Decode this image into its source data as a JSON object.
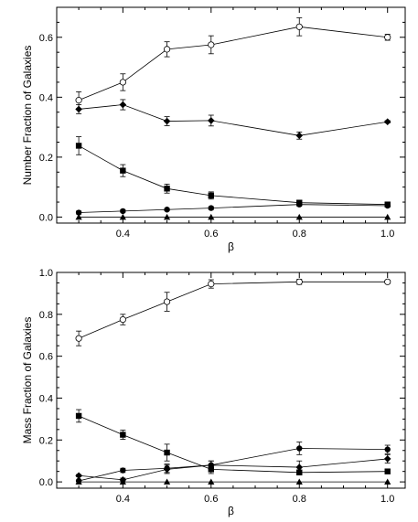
{
  "chart_data": [
    {
      "type": "line",
      "title": "",
      "xlabel": "β",
      "ylabel": "Number Fraction of Galaxies",
      "xlim": [
        0.25,
        1.04
      ],
      "ylim": [
        -0.02,
        0.7
      ],
      "xticks": [
        0.4,
        0.6,
        0.8,
        1.0
      ],
      "xtick_labels": [
        "0.4",
        "0.6",
        "0.8",
        "1.0"
      ],
      "yticks": [
        0.0,
        0.2,
        0.4,
        0.6
      ],
      "ytick_labels": [
        "0.0",
        "0.2",
        "0.4",
        "0.6"
      ],
      "x": [
        0.3,
        0.4,
        0.5,
        0.6,
        0.8,
        1.0
      ],
      "grid": false,
      "series": [
        {
          "marker": "open-circle",
          "values": [
            0.39,
            0.45,
            0.56,
            0.575,
            0.635,
            0.6
          ],
          "errors": [
            0.028,
            0.028,
            0.025,
            0.03,
            0.03,
            0.01
          ]
        },
        {
          "marker": "filled-diamond",
          "values": [
            0.36,
            0.375,
            0.32,
            0.322,
            0.272,
            0.318
          ],
          "errors": [
            0.015,
            0.017,
            0.015,
            0.018,
            0.012,
            0.004
          ]
        },
        {
          "marker": "filled-square",
          "values": [
            0.238,
            0.155,
            0.095,
            0.072,
            0.048,
            0.042
          ],
          "errors": [
            0.03,
            0.02,
            0.015,
            0.012,
            0.008,
            0.005
          ]
        },
        {
          "marker": "filled-circle",
          "values": [
            0.015,
            0.02,
            0.025,
            0.03,
            0.042,
            0.038
          ],
          "errors": [
            0.005,
            0.004,
            0.004,
            0.005,
            0.006,
            0.003
          ]
        },
        {
          "marker": "filled-triangle",
          "values": [
            0.0,
            0.0,
            0.0,
            0.0,
            0.0,
            0.0
          ],
          "errors": [
            0,
            0,
            0,
            0,
            0,
            0
          ]
        }
      ]
    },
    {
      "type": "line",
      "title": "",
      "xlabel": "β",
      "ylabel": "Mass Fraction of Galaxies",
      "xlim": [
        0.25,
        1.04
      ],
      "ylim": [
        -0.03,
        1.0
      ],
      "xticks": [
        0.4,
        0.6,
        0.8,
        1.0
      ],
      "xtick_labels": [
        "0.4",
        "0.6",
        "0.8",
        "1.0"
      ],
      "yticks": [
        0.0,
        0.2,
        0.4,
        0.6,
        0.8,
        1.0
      ],
      "ytick_labels": [
        "0.0",
        "0.2",
        "0.4",
        "0.6",
        "0.8",
        "1.0"
      ],
      "x": [
        0.3,
        0.4,
        0.5,
        0.6,
        0.8,
        1.0
      ],
      "grid": false,
      "series": [
        {
          "marker": "open-circle",
          "values": [
            0.685,
            0.775,
            0.86,
            0.945,
            0.955,
            0.955
          ],
          "errors": [
            0.035,
            0.025,
            0.045,
            0.02,
            0.012,
            0.008
          ]
        },
        {
          "marker": "filled-square",
          "values": [
            0.315,
            0.225,
            0.14,
            0.06,
            0.045,
            0.05
          ],
          "errors": [
            0.03,
            0.022,
            0.04,
            0.02,
            0.012,
            0.01
          ]
        },
        {
          "marker": "filled-circle",
          "values": [
            0.005,
            0.055,
            0.065,
            0.08,
            0.16,
            0.155
          ],
          "errors": [
            0.004,
            0.01,
            0.02,
            0.02,
            0.03,
            0.02
          ]
        },
        {
          "marker": "filled-diamond",
          "values": [
            0.03,
            0.01,
            0.06,
            0.08,
            0.07,
            0.11
          ],
          "errors": [
            0.005,
            0.008,
            0.02,
            0.02,
            0.03,
            0.02
          ]
        },
        {
          "marker": "filled-triangle",
          "values": [
            0.0,
            0.0,
            0.0,
            0.0,
            0.0,
            0.0
          ],
          "errors": [
            0,
            0,
            0,
            0,
            0,
            0
          ]
        }
      ]
    }
  ]
}
